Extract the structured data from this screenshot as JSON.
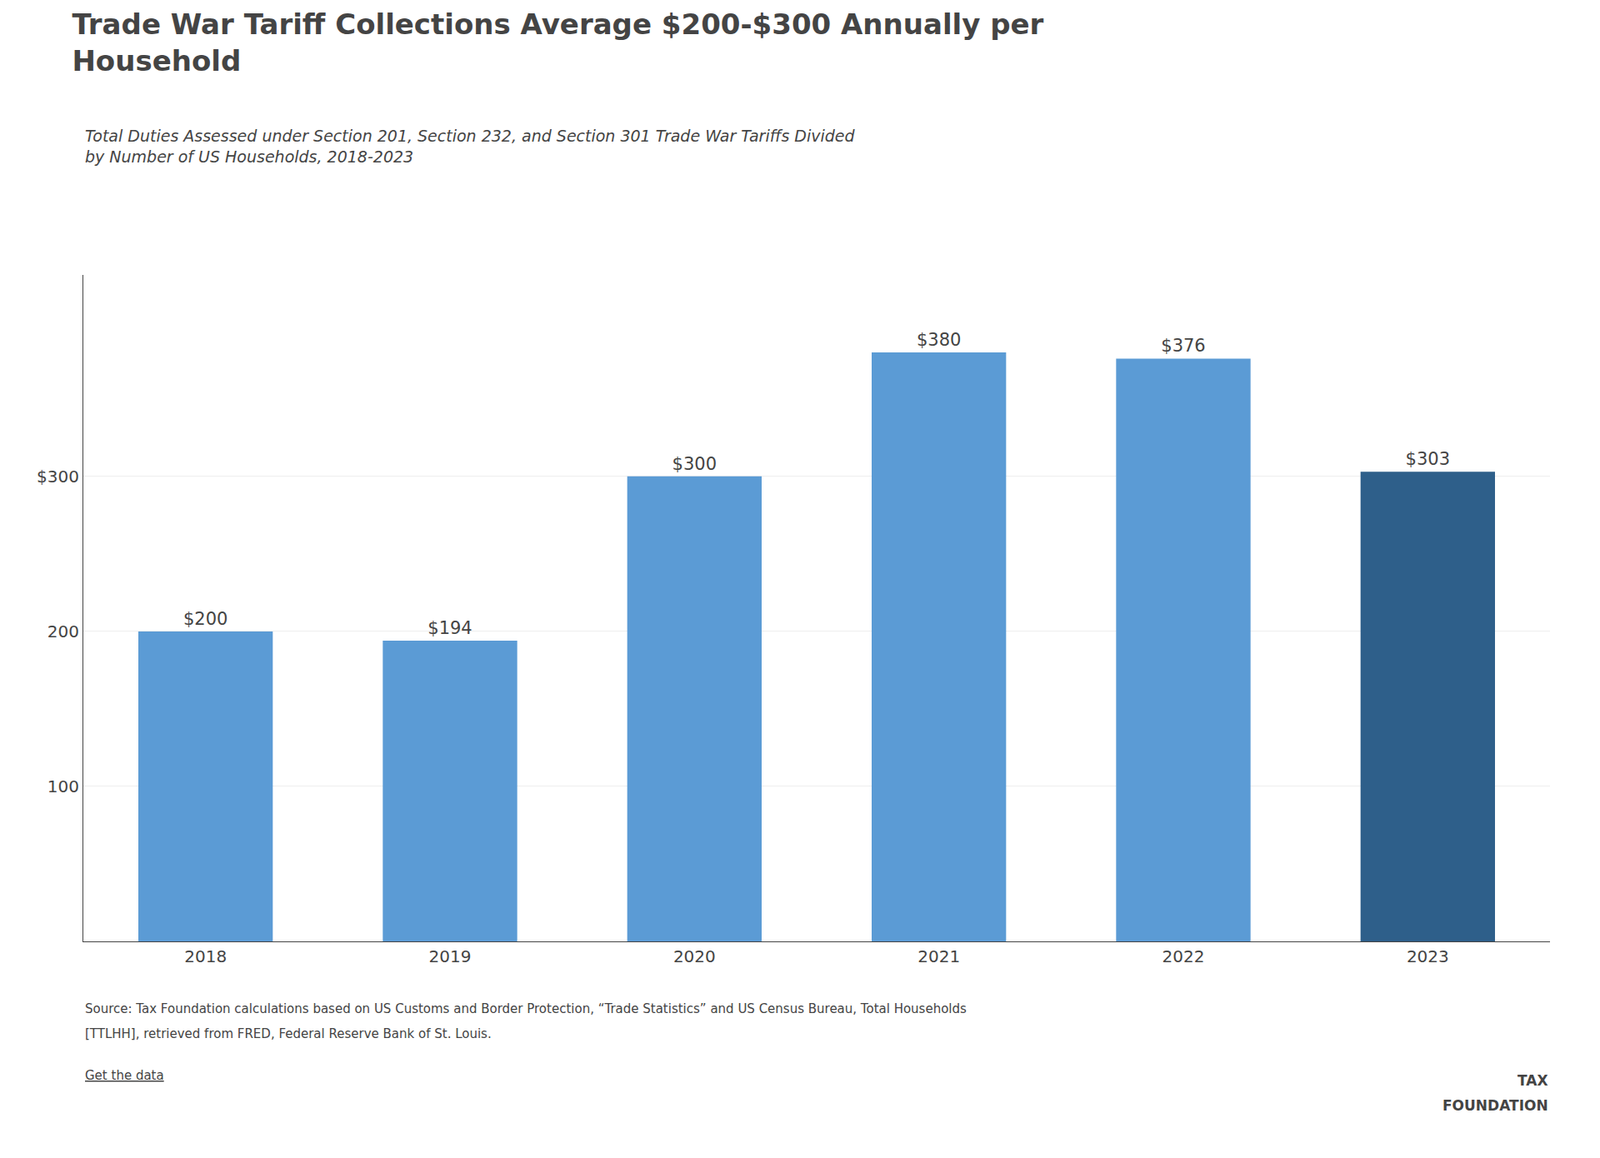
{
  "chart_data": {
    "type": "bar",
    "title": "Trade War Tariff Collections Average $200-$300 Annually per\nHousehold",
    "subtitle": "Total Duties Assessed under Section 201, Section 232, and Section 301 Trade War Tariffs Divided\nby Number of US Households, 2018-2023",
    "categories": [
      "2018",
      "2019",
      "2020",
      "2021",
      "2022",
      "2023"
    ],
    "values": [
      200,
      194,
      300,
      380,
      376,
      303
    ],
    "value_labels": [
      "$200",
      "$194",
      "$300",
      "$380",
      "$376",
      "$303"
    ],
    "data_labels": true,
    "colors": [
      "#5b9bd5",
      "#5b9bd5",
      "#5b9bd5",
      "#5b9bd5",
      "#5b9bd5",
      "#2e5f8a"
    ],
    "ylim": [
      0,
      430
    ],
    "yticks": [
      100,
      200,
      {
        "value": 300,
        "label": "$300"
      }
    ],
    "grid": true,
    "annotations": [
      "Source: Tax Foundation calculations based on US Customs and Border Protection, “Trade Statistics” and US Census Bureau, Total Households",
      "[TTLHH], retrieved from FRED, Federal Reserve Bank of St. Louis.",
      "Get the data",
      "TAX",
      "FOUNDATION"
    ]
  }
}
